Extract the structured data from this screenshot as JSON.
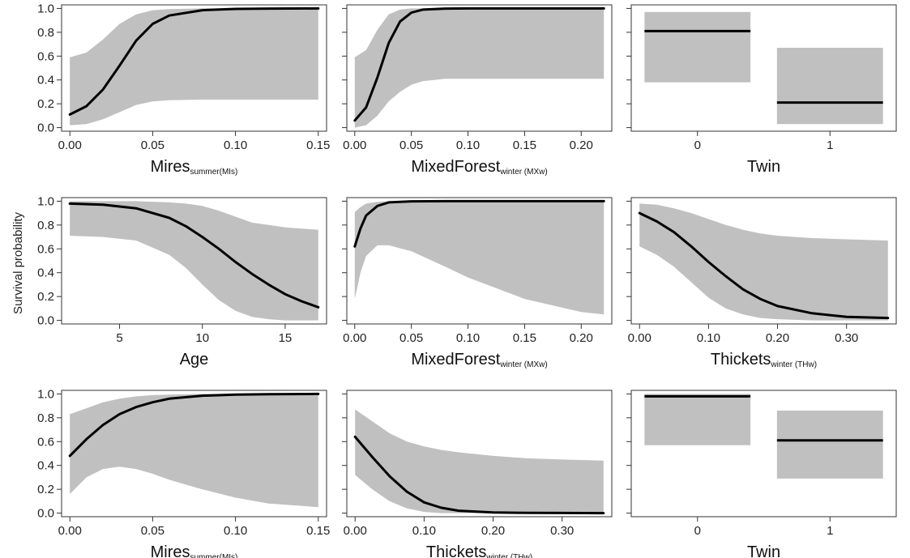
{
  "ylabel": "Survival probability",
  "chart_data": [
    {
      "type": "line",
      "xlabel": "Mires",
      "xlabel_sub": "summer(MIs)",
      "xlim": [
        -0.005,
        0.155
      ],
      "ylim": [
        -0.03,
        1.03
      ],
      "xticks": [
        0,
        0.05,
        0.1,
        0.15
      ],
      "xtick_labels": [
        "0.00",
        "0.05",
        "0.10",
        "0.15"
      ],
      "yticks": [
        0,
        0.2,
        0.4,
        0.6,
        0.8,
        1
      ],
      "ytick_labels": [
        "0.0",
        "0.2",
        "0.4",
        "0.6",
        "0.8",
        "1.0"
      ],
      "x": [
        0,
        0.01,
        0.02,
        0.03,
        0.04,
        0.05,
        0.06,
        0.08,
        0.1,
        0.12,
        0.15
      ],
      "fit": [
        0.11,
        0.18,
        0.32,
        0.52,
        0.73,
        0.87,
        0.94,
        0.985,
        0.996,
        0.999,
        1.0
      ],
      "lower": [
        0.02,
        0.03,
        0.07,
        0.13,
        0.19,
        0.22,
        0.23,
        0.235,
        0.235,
        0.235,
        0.235
      ],
      "upper": [
        0.59,
        0.63,
        0.74,
        0.87,
        0.95,
        0.985,
        0.995,
        1.0,
        1.0,
        1.0,
        1.0
      ]
    },
    {
      "type": "line",
      "xlabel": "MixedForest",
      "xlabel_sub": "winter (MXw)",
      "xlim": [
        -0.007,
        0.227
      ],
      "ylim": [
        -0.03,
        1.03
      ],
      "xticks": [
        0,
        0.05,
        0.1,
        0.15,
        0.2
      ],
      "xtick_labels": [
        "0.00",
        "0.05",
        "0.10",
        "0.15",
        "0.20"
      ],
      "yticks": [
        0,
        0.2,
        0.4,
        0.6,
        0.8,
        1
      ],
      "ytick_labels": [
        "",
        "",
        "",
        "",
        "",
        ""
      ],
      "x": [
        0,
        0.01,
        0.02,
        0.03,
        0.04,
        0.05,
        0.06,
        0.08,
        0.1,
        0.15,
        0.22
      ],
      "fit": [
        0.06,
        0.17,
        0.42,
        0.71,
        0.89,
        0.965,
        0.99,
        0.999,
        1.0,
        1.0,
        1.0
      ],
      "lower": [
        0.0,
        0.02,
        0.1,
        0.22,
        0.3,
        0.36,
        0.39,
        0.41,
        0.41,
        0.41,
        0.41
      ],
      "upper": [
        0.59,
        0.65,
        0.82,
        0.95,
        0.99,
        1.0,
        1.0,
        1.0,
        1.0,
        1.0,
        1.0
      ]
    },
    {
      "type": "bar",
      "xlabel": "Twin",
      "xlabel_sub": "",
      "xlim": [
        -0.5,
        1.5
      ],
      "ylim": [
        -0.03,
        1.03
      ],
      "xticks": [
        0,
        1
      ],
      "xtick_labels": [
        "0",
        "1"
      ],
      "yticks": [
        0,
        0.2,
        0.4,
        0.6,
        0.8,
        1
      ],
      "ytick_labels": [
        "",
        "",
        "",
        "",
        "",
        ""
      ],
      "categories": [
        "0",
        "1"
      ],
      "values": [
        0.81,
        0.21
      ],
      "lower": [
        0.38,
        0.03
      ],
      "upper": [
        0.97,
        0.67
      ]
    },
    {
      "type": "line",
      "xlabel": "Age",
      "xlabel_sub": "",
      "xlim": [
        1.5,
        17.5
      ],
      "ylim": [
        -0.03,
        1.03
      ],
      "xticks": [
        5,
        10,
        15
      ],
      "xtick_labels": [
        "5",
        "10",
        "15"
      ],
      "yticks": [
        0,
        0.2,
        0.4,
        0.6,
        0.8,
        1
      ],
      "ytick_labels": [
        "0.0",
        "0.2",
        "0.4",
        "0.6",
        "0.8",
        "1.0"
      ],
      "x": [
        2,
        4,
        6,
        8,
        9,
        10,
        11,
        12,
        13,
        14,
        15,
        16,
        17
      ],
      "fit": [
        0.98,
        0.97,
        0.94,
        0.86,
        0.79,
        0.7,
        0.6,
        0.49,
        0.39,
        0.3,
        0.22,
        0.16,
        0.11
      ],
      "lower": [
        0.71,
        0.7,
        0.67,
        0.55,
        0.44,
        0.3,
        0.17,
        0.08,
        0.03,
        0.01,
        0.0,
        0.0,
        0.0
      ],
      "upper": [
        1.0,
        1.0,
        1.0,
        0.99,
        0.98,
        0.96,
        0.92,
        0.87,
        0.82,
        0.8,
        0.78,
        0.77,
        0.76
      ]
    },
    {
      "type": "line",
      "xlabel": "MixedForest",
      "xlabel_sub": "winter (MXw)",
      "xlim": [
        -0.007,
        0.227
      ],
      "ylim": [
        -0.03,
        1.03
      ],
      "xticks": [
        0,
        0.05,
        0.1,
        0.15,
        0.2
      ],
      "xtick_labels": [
        "0.00",
        "0.05",
        "0.10",
        "0.15",
        "0.20"
      ],
      "yticks": [
        0,
        0.2,
        0.4,
        0.6,
        0.8,
        1
      ],
      "ytick_labels": [
        "",
        "",
        "",
        "",
        "",
        ""
      ],
      "x": [
        0,
        0.005,
        0.01,
        0.02,
        0.03,
        0.05,
        0.08,
        0.1,
        0.15,
        0.2,
        0.22
      ],
      "fit": [
        0.62,
        0.77,
        0.88,
        0.96,
        0.99,
        0.999,
        1.0,
        1.0,
        1.0,
        1.0,
        1.0
      ],
      "lower": [
        0.18,
        0.4,
        0.54,
        0.63,
        0.63,
        0.58,
        0.45,
        0.36,
        0.18,
        0.07,
        0.05
      ],
      "upper": [
        0.91,
        0.95,
        0.98,
        0.995,
        1.0,
        1.0,
        1.0,
        1.0,
        1.0,
        1.0,
        1.0
      ]
    },
    {
      "type": "line",
      "xlabel": "Thickets",
      "xlabel_sub": "winter (THw)",
      "xlim": [
        -0.012,
        0.372
      ],
      "ylim": [
        -0.03,
        1.03
      ],
      "xticks": [
        0,
        0.1,
        0.2,
        0.3
      ],
      "xtick_labels": [
        "0.00",
        "0.10",
        "0.20",
        "0.30"
      ],
      "yticks": [
        0,
        0.2,
        0.4,
        0.6,
        0.8,
        1
      ],
      "ytick_labels": [
        "",
        "",
        "",
        "",
        "",
        ""
      ],
      "x": [
        0,
        0.025,
        0.05,
        0.075,
        0.1,
        0.125,
        0.15,
        0.175,
        0.2,
        0.25,
        0.3,
        0.36
      ],
      "fit": [
        0.9,
        0.83,
        0.74,
        0.62,
        0.49,
        0.37,
        0.26,
        0.18,
        0.12,
        0.06,
        0.03,
        0.02
      ],
      "lower": [
        0.62,
        0.55,
        0.45,
        0.32,
        0.19,
        0.1,
        0.05,
        0.02,
        0.01,
        0.0,
        0.0,
        0.0
      ],
      "upper": [
        0.98,
        0.97,
        0.94,
        0.9,
        0.85,
        0.8,
        0.76,
        0.73,
        0.71,
        0.69,
        0.68,
        0.67
      ]
    },
    {
      "type": "line",
      "xlabel": "Mires",
      "xlabel_sub": "summer(MIs)",
      "xlim": [
        -0.005,
        0.155
      ],
      "ylim": [
        -0.03,
        1.03
      ],
      "xticks": [
        0,
        0.05,
        0.1,
        0.15
      ],
      "xtick_labels": [
        "0.00",
        "0.05",
        "0.10",
        "0.15"
      ],
      "yticks": [
        0,
        0.2,
        0.4,
        0.6,
        0.8,
        1
      ],
      "ytick_labels": [
        "0.0",
        "0.2",
        "0.4",
        "0.6",
        "0.8",
        "1.0"
      ],
      "x": [
        0,
        0.01,
        0.02,
        0.03,
        0.04,
        0.05,
        0.06,
        0.08,
        0.1,
        0.12,
        0.15
      ],
      "fit": [
        0.48,
        0.62,
        0.74,
        0.83,
        0.89,
        0.93,
        0.96,
        0.985,
        0.995,
        0.998,
        1.0
      ],
      "lower": [
        0.16,
        0.3,
        0.37,
        0.39,
        0.37,
        0.33,
        0.28,
        0.2,
        0.13,
        0.08,
        0.05
      ],
      "upper": [
        0.83,
        0.88,
        0.93,
        0.96,
        0.98,
        0.99,
        0.995,
        1.0,
        1.0,
        1.0,
        1.0
      ]
    },
    {
      "type": "line",
      "xlabel": "Thickets",
      "xlabel_sub": "winter (THw)",
      "xlim": [
        -0.012,
        0.372
      ],
      "ylim": [
        -0.03,
        1.03
      ],
      "xticks": [
        0,
        0.1,
        0.2,
        0.3
      ],
      "xtick_labels": [
        "0.00",
        "0.10",
        "0.20",
        "0.30"
      ],
      "yticks": [
        0,
        0.2,
        0.4,
        0.6,
        0.8,
        1
      ],
      "ytick_labels": [
        "",
        "",
        "",
        "",
        "",
        ""
      ],
      "x": [
        0,
        0.025,
        0.05,
        0.075,
        0.1,
        0.125,
        0.15,
        0.2,
        0.25,
        0.3,
        0.36
      ],
      "fit": [
        0.64,
        0.47,
        0.31,
        0.18,
        0.09,
        0.045,
        0.02,
        0.005,
        0.002,
        0.001,
        0.0
      ],
      "lower": [
        0.32,
        0.2,
        0.1,
        0.04,
        0.01,
        0.0,
        0.0,
        0.0,
        0.0,
        0.0,
        0.0
      ],
      "upper": [
        0.87,
        0.77,
        0.67,
        0.6,
        0.56,
        0.53,
        0.51,
        0.48,
        0.46,
        0.45,
        0.44
      ]
    },
    {
      "type": "bar",
      "xlabel": "Twin",
      "xlabel_sub": "",
      "xlim": [
        -0.5,
        1.5
      ],
      "ylim": [
        -0.03,
        1.03
      ],
      "xticks": [
        0,
        1
      ],
      "xtick_labels": [
        "0",
        "1"
      ],
      "yticks": [
        0,
        0.2,
        0.4,
        0.6,
        0.8,
        1
      ],
      "ytick_labels": [
        "",
        "",
        "",
        "",
        "",
        ""
      ],
      "categories": [
        "0",
        "1"
      ],
      "values": [
        0.98,
        0.61
      ],
      "lower": [
        0.57,
        0.29
      ],
      "upper": [
        1.0,
        0.86
      ]
    }
  ],
  "colors": {
    "band": "#c0c0c0",
    "line": "#000000",
    "frame": "#333333"
  }
}
